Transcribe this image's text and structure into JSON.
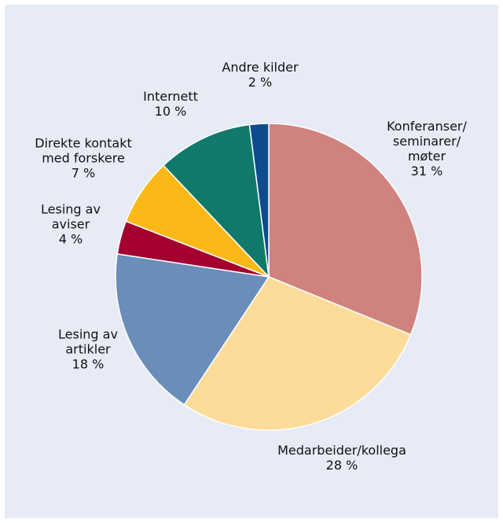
{
  "chart_data": {
    "type": "pie",
    "title": "",
    "start_angle_deg": 0,
    "direction": "clockwise",
    "slices": [
      {
        "label_lines": [
          "Konferanser/",
          "seminarer/",
          "møter"
        ],
        "value_label": "31 %",
        "value": 31.0,
        "color": "#d0827e"
      },
      {
        "label_lines": [
          "Medarbeider/kollega"
        ],
        "value_label": "28 %",
        "value": 28.0,
        "color": "#fddb99"
      },
      {
        "label_lines": [
          "Lesing av",
          "artikler"
        ],
        "value_label": "18 %",
        "value": 18.0,
        "color": "#6a8dba"
      },
      {
        "label_lines": [
          "Lesing av",
          "aviser"
        ],
        "value_label": "4 %",
        "value": 3.5,
        "color": "#a3002f"
      },
      {
        "label_lines": [
          "Direkte kontakt",
          "med forskere"
        ],
        "value_label": "7 %",
        "value": 7.0,
        "color": "#fbb918"
      },
      {
        "label_lines": [
          "Internett"
        ],
        "value_label": "10 %",
        "value": 10.0,
        "color": "#10796a"
      },
      {
        "label_lines": [
          "Andre kilder"
        ],
        "value_label": "2 %",
        "value": 2.0,
        "color": "#0e4c8d"
      }
    ]
  }
}
